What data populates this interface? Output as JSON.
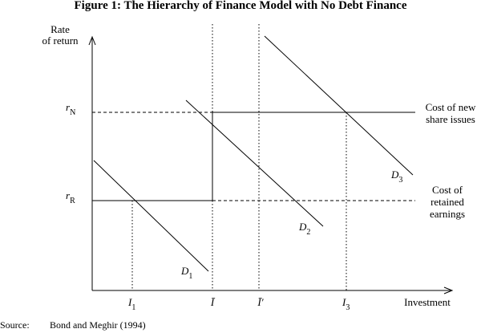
{
  "title": "Figure 1: The Hierarchy of Finance Model with No Debt Finance",
  "y_axis_label": [
    "Rate",
    "of return"
  ],
  "x_axis_label": "Investment",
  "rates": [
    {
      "base": "r",
      "sub": "N"
    },
    {
      "base": "r",
      "sub": "R"
    }
  ],
  "cost_labels": [
    [
      "Cost of new",
      "share issues"
    ],
    [
      "Cost of",
      "retained",
      "earnings"
    ]
  ],
  "curves": [
    {
      "base": "D",
      "sub": "1"
    },
    {
      "base": "D",
      "sub": "2"
    },
    {
      "base": "D",
      "sub": "3"
    }
  ],
  "investment_levels": [
    {
      "base": "I",
      "sub": "1"
    },
    {
      "base": "Ī"
    },
    {
      "base": "Ī′"
    },
    {
      "base": "I",
      "sub": "3"
    }
  ],
  "source": {
    "label": "Source:",
    "text": "Bond and Meghir (1994)"
  }
}
